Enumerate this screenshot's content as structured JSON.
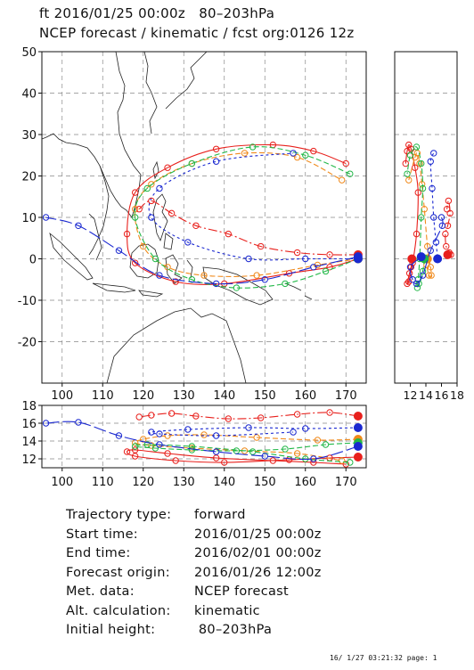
{
  "header": {
    "line1": "ft 2016/01/25 00:00z   80–203hPa",
    "line2": "NCEP forecast / kinematic / fcst org:0126 12z"
  },
  "info": [
    {
      "key": "Trajectory type:",
      "value": "forward"
    },
    {
      "key": "Start time:",
      "value": "2016/01/25 00:00z"
    },
    {
      "key": "End time:",
      "value": "2016/02/01 00:00z"
    },
    {
      "key": "Forecast origin:",
      "value": "2016/01/26 12:00z"
    },
    {
      "key": "Met. data:",
      "value": "NCEP forecast"
    },
    {
      "key": "Alt. calculation:",
      "value": "kinematic"
    },
    {
      "key": "Initial height:",
      "value": " 80–203hPa"
    }
  ],
  "footer": "16/ 1/27 03:21:32 page: 1",
  "chart_data": {
    "type": "line",
    "map": {
      "xlim": [
        95,
        175
      ],
      "ylim": [
        -30,
        50
      ],
      "xticks": [
        100,
        110,
        120,
        130,
        140,
        150,
        160,
        170
      ],
      "yticks": [
        -20,
        -10,
        0,
        10,
        20,
        30,
        40,
        50
      ],
      "grid": true
    },
    "side_panel": {
      "xlim": [
        10,
        18
      ],
      "xticks": [
        12,
        14,
        16,
        18
      ]
    },
    "bottom_panel": {
      "ylim": [
        11,
        18
      ],
      "yticks": [
        12,
        14,
        16,
        18
      ]
    },
    "series": [
      {
        "color": "#e8201c",
        "dash": "",
        "lon": [
          173,
          166,
          156,
          140,
          128,
          118,
          116,
          118,
          126,
          138,
          152,
          162,
          170
        ],
        "lat": [
          0,
          -2,
          -3.5,
          -6,
          -5.5,
          -1,
          6,
          16,
          22,
          26.5,
          27.5,
          26,
          23
        ],
        "alt": [
          12.2,
          12.1,
          11.9,
          11.6,
          11.8,
          12.3,
          12.8,
          13,
          12.6,
          12.1,
          11.8,
          11.6,
          11.4
        ]
      },
      {
        "color": "#f08a1c",
        "dash": "6 3",
        "lon": [
          173,
          163,
          148,
          135,
          126,
          120,
          118,
          122,
          132,
          145,
          158,
          169
        ],
        "lat": [
          0,
          -1.5,
          -4,
          -4,
          -2,
          3,
          12,
          18,
          23,
          25.5,
          24.5,
          19
        ],
        "alt": [
          14.2,
          14.1,
          14.4,
          14.7,
          14.6,
          14.2,
          13.8,
          13.5,
          13.2,
          12.9,
          12.6,
          11.8
        ]
      },
      {
        "color": "#22b848",
        "dash": "6 3",
        "lon": [
          173,
          165,
          155,
          143,
          132,
          123,
          118,
          121,
          132,
          147,
          160,
          171
        ],
        "lat": [
          0,
          -3,
          -6,
          -7,
          -5,
          0,
          10,
          17,
          23,
          27,
          25,
          20.5
        ],
        "alt": [
          13.8,
          13.6,
          13.1,
          12.9,
          13.0,
          13.2,
          13.4,
          13.6,
          13.4,
          12.8,
          12.0,
          11.6
        ]
      },
      {
        "color": "#1a28d0",
        "dash": "3 3",
        "lon": [
          173,
          160,
          146,
          131,
          122,
          124,
          138,
          157
        ],
        "lat": [
          0,
          0,
          0,
          4,
          10,
          17,
          23.5,
          25.5
        ],
        "alt": [
          15.5,
          15.4,
          15.5,
          15.3,
          15.0,
          14.8,
          14.6,
          15.0
        ]
      },
      {
        "color": "#e8201c",
        "dash": "10 3 2 3",
        "lon": [
          173,
          166,
          158,
          149,
          141,
          133,
          127,
          122,
          119
        ],
        "lat": [
          1,
          1,
          1.5,
          3,
          6,
          8,
          11,
          14,
          12
        ],
        "alt": [
          16.8,
          17.2,
          17.0,
          16.6,
          16.5,
          16.8,
          17.1,
          16.9,
          16.7
        ]
      },
      {
        "color": "#1a28d0",
        "dash": "14 4",
        "lon": [
          173,
          162,
          150,
          138,
          124,
          114,
          104,
          96
        ],
        "lat": [
          0.5,
          -2,
          -5,
          -6,
          -4,
          2,
          8,
          10
        ],
        "alt": [
          13.4,
          12.0,
          12.3,
          12.8,
          13.6,
          14.6,
          16.1,
          16.0
        ]
      }
    ]
  }
}
